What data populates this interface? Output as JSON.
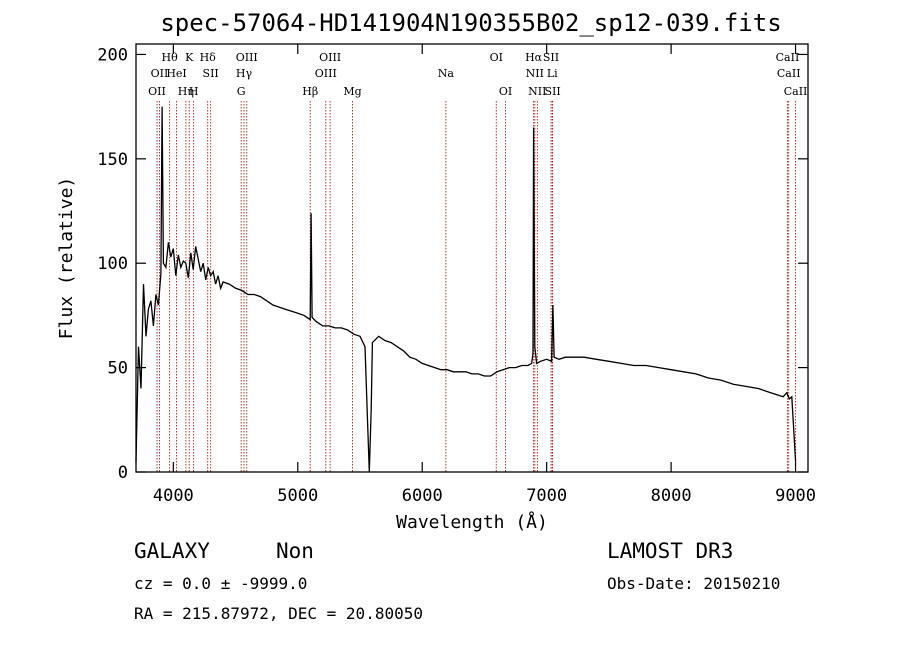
{
  "chart_data": {
    "type": "line",
    "title": "spec-57064-HD141904N190355B02_sp12-039.fits",
    "xlabel": "Wavelength (Å)",
    "ylabel": "Flux (relative)",
    "xlim": [
      3700,
      9100
    ],
    "ylim": [
      0,
      205
    ],
    "x_ticks": [
      4000,
      5000,
      6000,
      7000,
      8000,
      9000
    ],
    "y_ticks": [
      0,
      50,
      100,
      150,
      200
    ],
    "grid": false,
    "series": [
      {
        "x": [
          3700,
          3720,
          3740,
          3760,
          3780,
          3800,
          3820,
          3840,
          3860,
          3880,
          3900,
          3910,
          3920,
          3940,
          3960,
          3980,
          4000,
          4020,
          4040,
          4060,
          4080,
          4100,
          4120,
          4140,
          4160,
          4180,
          4200,
          4220,
          4240,
          4260,
          4280,
          4300,
          4320,
          4340,
          4360,
          4380,
          4400,
          4450,
          4500,
          4550,
          4600,
          4650,
          4700,
          4750,
          4800,
          4850,
          4900,
          4950,
          5000,
          5050,
          5100,
          5107,
          5115,
          5150,
          5200,
          5250,
          5300,
          5350,
          5400,
          5450,
          5500,
          5540,
          5560,
          5575,
          5590,
          5600,
          5650,
          5700,
          5750,
          5800,
          5850,
          5900,
          5950,
          6000,
          6050,
          6100,
          6150,
          6200,
          6250,
          6300,
          6350,
          6400,
          6450,
          6500,
          6550,
          6600,
          6650,
          6700,
          6750,
          6800,
          6850,
          6880,
          6890,
          6895,
          6905,
          6920,
          6950,
          7000,
          7040,
          7050,
          7060,
          7100,
          7150,
          7200,
          7300,
          7400,
          7500,
          7600,
          7700,
          7800,
          7900,
          8000,
          8100,
          8200,
          8300,
          8400,
          8500,
          8600,
          8700,
          8800,
          8850,
          8900,
          8930,
          8950,
          8970,
          9000
        ],
        "y": [
          5,
          60,
          40,
          90,
          65,
          78,
          82,
          70,
          85,
          80,
          95,
          175,
          100,
          98,
          110,
          103,
          107,
          94,
          104,
          98,
          101,
          100,
          93,
          105,
          97,
          108,
          102,
          96,
          100,
          92,
          98,
          94,
          96,
          90,
          94,
          88,
          91,
          90,
          88,
          87,
          85,
          85,
          84,
          82,
          80,
          79,
          78,
          77,
          76,
          75,
          73,
          124,
          74,
          72,
          70,
          70,
          69,
          69,
          68,
          66,
          65,
          60,
          25,
          0,
          30,
          62,
          65,
          63,
          62,
          60,
          58,
          55,
          54,
          52,
          51,
          50,
          49,
          49,
          48,
          48,
          48,
          47,
          47,
          46,
          46,
          48,
          49,
          50,
          50,
          51,
          51,
          52,
          57,
          165,
          60,
          52,
          53,
          54,
          53,
          80,
          55,
          54,
          55,
          55,
          55,
          54,
          53,
          52,
          51,
          51,
          50,
          49,
          48,
          47,
          45,
          44,
          42,
          41,
          40,
          38,
          37,
          36,
          38,
          35,
          36,
          5
        ]
      }
    ],
    "line_markers": [
      {
        "x": 3869,
        "row": 2,
        "label": "OII"
      },
      {
        "x": 3889,
        "row": 1,
        "label": "OII"
      },
      {
        "x": 3970,
        "row": 0,
        "label": "Hθ"
      },
      {
        "x": 4026,
        "row": 1,
        "label": "HeI"
      },
      {
        "x": 4101,
        "row": 2,
        "label": "Hη"
      },
      {
        "x": 4128,
        "row": 0,
        "label": "K"
      },
      {
        "x": 4163,
        "row": 2,
        "label": "H"
      },
      {
        "x": 4276,
        "row": 0,
        "label": "Hδ"
      },
      {
        "x": 4300,
        "row": 1,
        "label": "SII"
      },
      {
        "x": 4545,
        "row": 2,
        "label": "G"
      },
      {
        "x": 4568,
        "row": 1,
        "label": "Hγ"
      },
      {
        "x": 4590,
        "row": 0,
        "label": "OIII"
      },
      {
        "x": 5100,
        "row": 2,
        "label": "Hβ"
      },
      {
        "x": 5225,
        "row": 1,
        "label": "OIII"
      },
      {
        "x": 5260,
        "row": 0,
        "label": "OIII"
      },
      {
        "x": 5440,
        "row": 2,
        "label": "Mg"
      },
      {
        "x": 6190,
        "row": 1,
        "label": "Na"
      },
      {
        "x": 6595,
        "row": 0,
        "label": "OI"
      },
      {
        "x": 6670,
        "row": 2,
        "label": "OI"
      },
      {
        "x": 6895,
        "row": 0,
        "label": "Hα"
      },
      {
        "x": 6905,
        "row": 1,
        "label": "NII"
      },
      {
        "x": 6925,
        "row": 2,
        "label": "NII"
      },
      {
        "x": 7035,
        "row": 0,
        "label": "SII"
      },
      {
        "x": 7045,
        "row": 1,
        "label": "Li"
      },
      {
        "x": 7048,
        "row": 2,
        "label": "SII"
      },
      {
        "x": 8935,
        "row": 0,
        "label": "CaII"
      },
      {
        "x": 8945,
        "row": 1,
        "label": "CaII"
      },
      {
        "x": 9000,
        "row": 2,
        "label": "CaII"
      }
    ]
  },
  "info": {
    "class": "GALAXY",
    "subclass": "Non",
    "survey": "LAMOST DR3",
    "cz": "cz = 0.0 ± -9999.0",
    "obs_date": "Obs-Date: 20150210",
    "radec": "RA = 215.87972, DEC =  20.80050"
  },
  "colors": {
    "spectrum": "#000000",
    "marker_line": "#b22222",
    "axis": "#000000"
  }
}
